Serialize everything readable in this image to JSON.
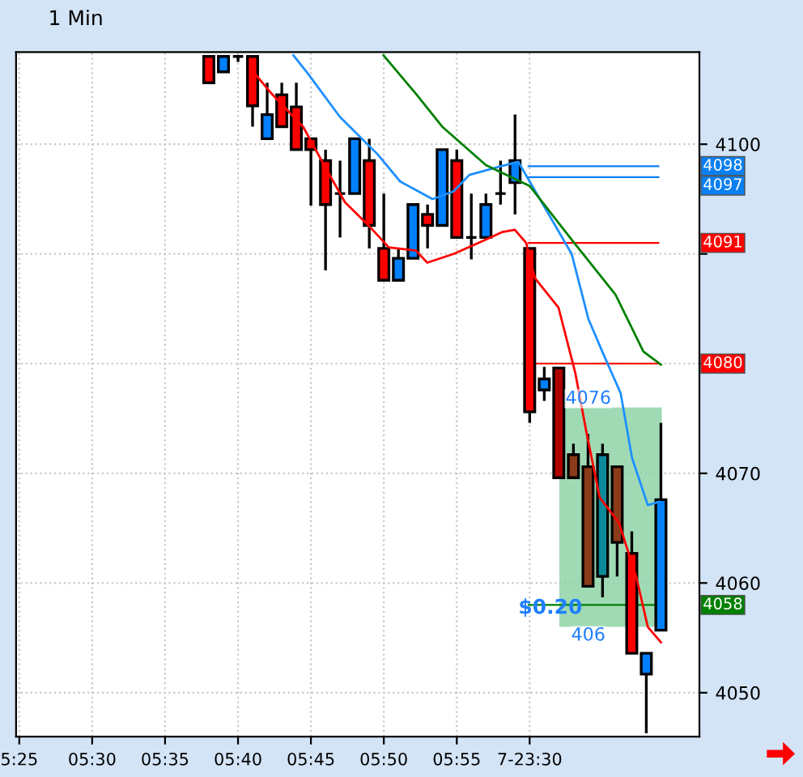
{
  "chart_data": {
    "type": "candlestick",
    "title": "1 Min",
    "x": [
      5.6333,
      5.65,
      5.6667,
      5.6833,
      5.7,
      5.7167,
      5.7333,
      5.75,
      5.7667,
      5.7833,
      5.8,
      5.8167,
      5.8333,
      5.85,
      5.8667,
      5.8833,
      5.9,
      5.9167,
      5.9333,
      5.95,
      5.9667,
      5.9833,
      6.0,
      6.0167,
      6.0333,
      6.05,
      6.0667,
      6.0833,
      6.1,
      6.1167,
      6.1333,
      6.15
    ],
    "ohlc": [
      [
        4108,
        4108,
        4105.6,
        4105.6
      ],
      [
        4106.6,
        4108,
        4106.6,
        4108
      ],
      [
        4108,
        4108,
        4107.5,
        4108
      ],
      [
        4108,
        4108,
        4101.6,
        4103.5
      ],
      [
        4100.5,
        4105.6,
        4100.5,
        4102.7
      ],
      [
        4104.5,
        4105.6,
        4101.6,
        4101.6
      ],
      [
        4103.4,
        4105.6,
        4099.5,
        4099.5
      ],
      [
        4100.5,
        4100.5,
        4094.4,
        4099.5
      ],
      [
        4098.5,
        4099.5,
        4088.5,
        4094.5
      ],
      [
        4095.5,
        4098.5,
        4091.5,
        4095.5
      ],
      [
        4095.5,
        4100.5,
        4095.5,
        4100.5
      ],
      [
        4098.5,
        4100.5,
        4090.5,
        4092.6
      ],
      [
        4090.5,
        4095.5,
        4087.6,
        4087.6
      ],
      [
        4087.6,
        4090.5,
        4087.6,
        4089.6
      ],
      [
        4089.6,
        4094.5,
        4089.6,
        4094.5
      ],
      [
        4093.6,
        4094.5,
        4090.5,
        4092.6
      ],
      [
        4092.6,
        4099.5,
        4092.6,
        4099.5
      ],
      [
        4098.5,
        4099.5,
        4091.5,
        4091.5
      ],
      [
        4091.5,
        4095.5,
        4089.5,
        4091.5
      ],
      [
        4091.5,
        4095.5,
        4091.5,
        4094.5
      ],
      [
        4095.5,
        4098.5,
        4094.5,
        4095.5
      ],
      [
        4096.5,
        4102.7,
        4093.6,
        4098.5
      ],
      [
        4090.5,
        4090.5,
        4074.6,
        4075.6
      ],
      [
        4077.6,
        4079.7,
        4076.6,
        4078.6
      ],
      [
        4079.6,
        4079.6,
        4069.6,
        4069.6
      ],
      [
        4071.7,
        4072.7,
        4069.6,
        4069.6
      ],
      [
        4070.6,
        4073.6,
        4059.7,
        4059.7
      ],
      [
        4060.6,
        4072.7,
        4058.7,
        4071.7
      ],
      [
        4070.6,
        4070.6,
        4060.6,
        4063.7
      ],
      [
        4062.7,
        4064.7,
        4053.6,
        4053.6
      ],
      [
        4051.7,
        4053.6,
        4046.3,
        4053.6
      ],
      [
        4055.7,
        4074.6,
        4055.7,
        4067.6
      ]
    ],
    "colors": [
      "#ff0000",
      "#0080ff",
      "#000000",
      "#ff0000",
      "#0080ff",
      "#ff0000",
      "#ff0000",
      "#ff0000",
      "#ff0000",
      "#000000",
      "#0080ff",
      "#ff0000",
      "#ff0000",
      "#0080ff",
      "#0080ff",
      "#ff0000",
      "#0080ff",
      "#ff0000",
      "#000000",
      "#0080ff",
      "#000000",
      "#0080ff",
      "#ff0000",
      "#0080ff",
      "#b00000",
      "#8b3a1a",
      "#8b3a1a",
      "#0a8a9a",
      "#8b3a1a",
      "#ff0000",
      "#0080ff",
      "#0080ff"
    ],
    "series": [
      {
        "type": "line",
        "color": "#ff0000",
        "x": [
          5.682,
          5.704,
          5.741,
          5.765,
          5.789,
          5.817,
          5.839,
          5.87,
          5.883,
          5.913,
          5.95,
          5.969,
          5.983,
          5.996,
          6.006,
          6.033,
          6.052,
          6.065,
          6.08,
          6.102,
          6.122,
          6.135,
          6.15
        ],
        "values": [
          4106.8,
          4104.7,
          4101.6,
          4098.1,
          4094.7,
          4092.5,
          4090.6,
          4090.3,
          4089.2,
          4090.0,
          4091.3,
          4092.0,
          4092.2,
          4091.0,
          4087.8,
          4085.1,
          4079.2,
          4073.7,
          4067.8,
          4065.5,
          4060.5,
          4056.0,
          4054.6
        ]
      },
      {
        "type": "line",
        "color": "#1e90ff",
        "x": [
          5.73,
          5.746,
          5.783,
          5.826,
          5.852,
          5.889,
          5.913,
          5.931,
          5.963,
          5.987,
          6.0,
          6.048,
          6.067,
          6.083,
          6.104,
          6.117,
          6.135,
          6.148
        ],
        "values": [
          4108.1,
          4106.5,
          4102.5,
          4099.1,
          4096.6,
          4095.0,
          4095.7,
          4097.2,
          4097.9,
          4098.4,
          4096.6,
          4090.0,
          4084.1,
          4081.1,
          4077.3,
          4071.4,
          4067.1,
          4067.4
        ]
      },
      {
        "type": "line",
        "color": "#008000",
        "x": [
          5.833,
          5.87,
          5.9,
          5.95,
          6.0,
          6.048,
          6.098,
          6.13,
          6.15
        ],
        "values": [
          4108.1,
          4104.6,
          4101.6,
          4098.1,
          4096.2,
          4091.3,
          4086.3,
          4081.1,
          4079.9
        ]
      }
    ],
    "ref_lines": [
      {
        "axis": "y",
        "value": 4098,
        "label": "4098",
        "color": "#0a7ff0"
      },
      {
        "axis": "y",
        "value": 4097,
        "label": "4097",
        "color": "#0a7ff0"
      },
      {
        "axis": "y",
        "value": 4091,
        "label": "4091",
        "color": "#ff0000"
      },
      {
        "axis": "y",
        "value": 4080,
        "label": "4080",
        "color": "#ff0000"
      },
      {
        "axis": "y",
        "value": 4058,
        "label": "4058",
        "color": "#008000"
      }
    ],
    "bands": [
      {
        "axis": "y",
        "from": 4056,
        "to": 4076,
        "label": "$0.20",
        "color": "#8fd3a8"
      }
    ],
    "annotations": [
      {
        "text": "4076",
        "x": 6.067,
        "y": 4076
      },
      {
        "text": "406",
        "x": 6.067,
        "y": 4056
      }
    ],
    "xlim": [
      5.413,
      6.194
    ],
    "xticks": [
      {
        "value": 5.4167,
        "label": "5:25"
      },
      {
        "value": 5.5,
        "label": "05:30"
      },
      {
        "value": 5.5833,
        "label": "05:35"
      },
      {
        "value": 5.6667,
        "label": "05:40"
      },
      {
        "value": 5.75,
        "label": "05:45"
      },
      {
        "value": 5.8333,
        "label": "05:50"
      },
      {
        "value": 5.9167,
        "label": "05:55"
      },
      {
        "value": 6.0,
        "label": "7-23:30"
      }
    ],
    "ylim": [
      4046.0,
      4108.4
    ],
    "yticks": [
      4050,
      4060,
      4070,
      {
        "value": 4080,
        "label": null
      },
      {
        "value": 4090,
        "label": null
      },
      4100
    ],
    "grid": "dotted"
  }
}
